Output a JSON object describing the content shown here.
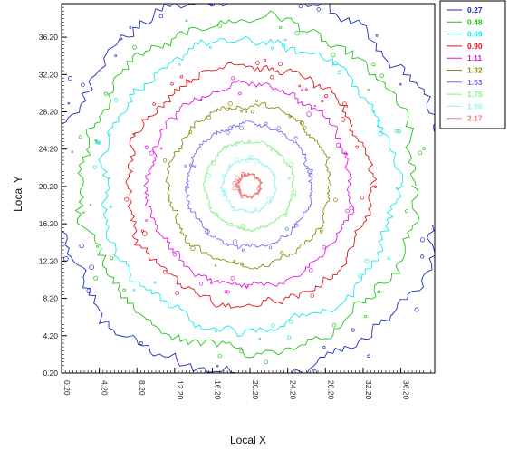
{
  "chart_data": {
    "type": "contour",
    "xlabel": "Local X",
    "ylabel": "Local Y",
    "x_ticks": [
      "0.20",
      "4.20",
      "8.20",
      "12.20",
      "16.20",
      "20.20",
      "24.20",
      "28.20",
      "32.20",
      "36.20"
    ],
    "y_ticks": [
      "0.20",
      "4.20",
      "8.20",
      "12.20",
      "16.20",
      "20.20",
      "24.20",
      "28.20",
      "32.20",
      "36.20"
    ],
    "x_tick_values": [
      0.2,
      4.2,
      8.2,
      12.2,
      16.2,
      20.2,
      24.2,
      28.2,
      32.2,
      36.2
    ],
    "y_tick_values": [
      0.2,
      4.2,
      8.2,
      12.2,
      16.2,
      20.2,
      24.2,
      28.2,
      32.2,
      36.2
    ],
    "xlim": [
      0.2,
      39.8
    ],
    "ylim": [
      0.2,
      39.8
    ],
    "center": [
      20.1,
      20.3
    ],
    "grid": false,
    "legend_position": "outside-right",
    "levels": [
      {
        "label": "0.27",
        "color": "#1a2dbd",
        "radius": 20.5
      },
      {
        "label": "0.48",
        "color": "#22c41a",
        "radius": 17.8
      },
      {
        "label": "0.69",
        "color": "#18e6ea",
        "radius": 15.6
      },
      {
        "label": "0.90",
        "color": "#e0151b",
        "radius": 12.9
      },
      {
        "label": "1.11",
        "color": "#e218e2",
        "radius": 10.8
      },
      {
        "label": "1.32",
        "color": "#8b8b12",
        "radius": 8.6
      },
      {
        "label": "1.53",
        "color": "#6f6ff0",
        "radius": 6.6
      },
      {
        "label": "1.75",
        "color": "#87ee87",
        "radius": 4.7
      },
      {
        "label": "1.96",
        "color": "#9ef0f0",
        "radius": 2.8
      },
      {
        "label": "2.17",
        "color": "#f07878",
        "radius": 1.2
      }
    ]
  }
}
